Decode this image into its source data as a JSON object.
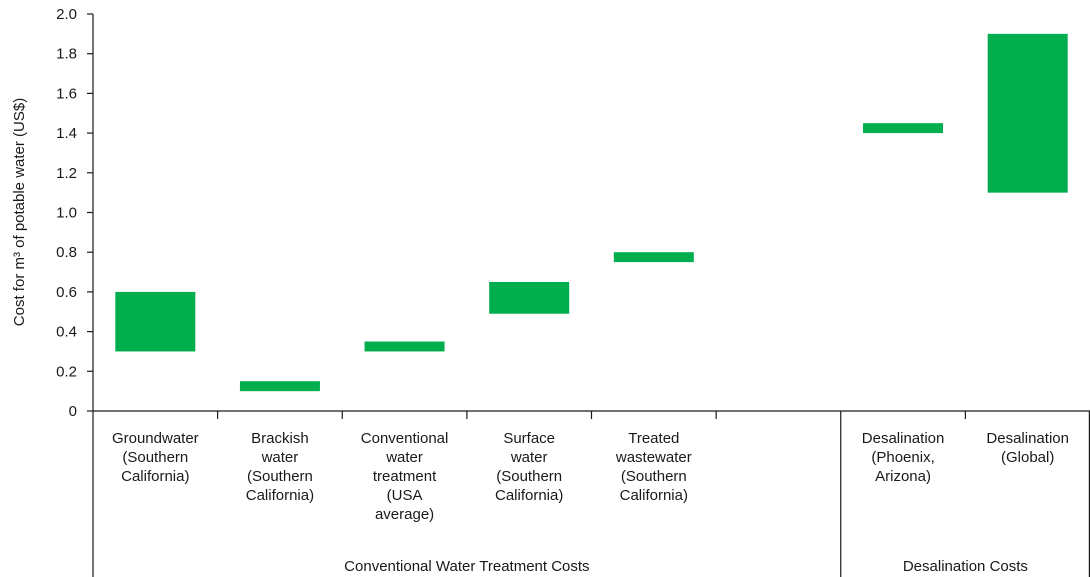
{
  "chart_data": {
    "type": "bar",
    "subtype": "floating-range",
    "ylabel": "Cost for m³ of potable water (US$)",
    "ylim": [
      0,
      2.0
    ],
    "yticks": [
      0,
      0.2,
      0.4,
      0.6,
      0.8,
      1.0,
      1.2,
      1.4,
      1.6,
      1.8,
      2.0
    ],
    "ytick_labels": [
      "0",
      "0.2",
      "0.4",
      "0.6",
      "0.8",
      "1.0",
      "1.2",
      "1.4",
      "1.6",
      "1.8",
      "2.0"
    ],
    "bar_color": "#00ae4d",
    "categories": [
      {
        "lines": [
          "Groundwater",
          "(Southern",
          "California)"
        ],
        "low": 0.3,
        "high": 0.6
      },
      {
        "lines": [
          "Brackish",
          "water",
          "(Southern",
          "California)"
        ],
        "low": 0.1,
        "high": 0.15
      },
      {
        "lines": [
          "Conventional",
          "water",
          "treatment",
          "(USA",
          "average)"
        ],
        "low": 0.3,
        "high": 0.35
      },
      {
        "lines": [
          "Surface",
          "water",
          "(Southern",
          "California)"
        ],
        "low": 0.49,
        "high": 0.65
      },
      {
        "lines": [
          "Treated",
          "wastewater",
          "(Southern",
          "California)"
        ],
        "low": 0.75,
        "high": 0.8
      },
      {
        "lines": [],
        "low": null,
        "high": null
      },
      {
        "lines": [
          "Desalination",
          "(Phoenix,",
          "Arizona)"
        ],
        "low": 1.4,
        "high": 1.45
      },
      {
        "lines": [
          "Desalination",
          "(Global)"
        ],
        "low": 1.1,
        "high": 1.9
      }
    ],
    "groups": [
      {
        "label": "Conventional Water Treatment Costs",
        "span": [
          0,
          5
        ]
      },
      {
        "label": "Desalination Costs",
        "span": [
          6,
          7
        ]
      }
    ]
  }
}
